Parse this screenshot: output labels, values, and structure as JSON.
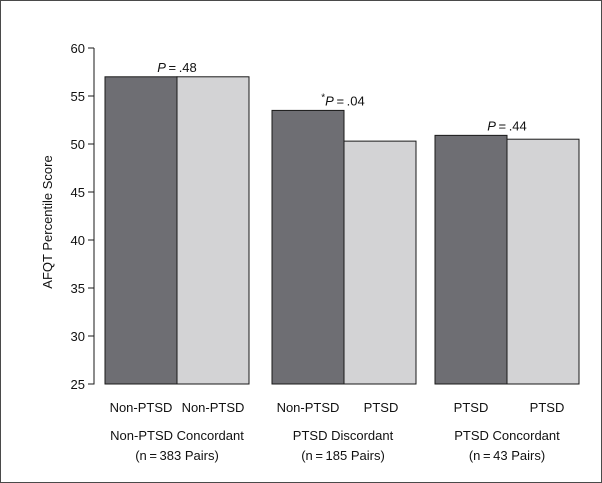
{
  "chart_data": {
    "type": "bar",
    "ylabel": "AFQT Percentile Score",
    "ylim": [
      25,
      60
    ],
    "yticks": [
      25,
      30,
      35,
      40,
      45,
      50,
      55,
      60
    ],
    "colors": {
      "dark": "#6e6e73",
      "light": "#d3d3d5",
      "edge": "#1a1a1a"
    },
    "groups": [
      {
        "label": "Non-PTSD Concordant",
        "sublabel": "(n = 383 Pairs)",
        "annotation_pre": "",
        "annotation_p": "P",
        "annotation_val": " = .48",
        "bars": [
          {
            "label": "Non-PTSD",
            "value": 57.0,
            "color": "dark"
          },
          {
            "label": "Non-PTSD",
            "value": 57.0,
            "color": "light"
          }
        ]
      },
      {
        "label": "PTSD Discordant",
        "sublabel": "(n = 185 Pairs)",
        "annotation_pre": "*",
        "annotation_p": "P",
        "annotation_val": " = .04",
        "bars": [
          {
            "label": "Non-PTSD",
            "value": 53.5,
            "color": "dark"
          },
          {
            "label": "PTSD",
            "value": 50.3,
            "color": "light"
          }
        ]
      },
      {
        "label": "PTSD Concordant",
        "sublabel": "(n = 43 Pairs)",
        "annotation_pre": "",
        "annotation_p": "P",
        "annotation_val": " = .44",
        "bars": [
          {
            "label": "PTSD",
            "value": 50.9,
            "color": "dark"
          },
          {
            "label": "PTSD",
            "value": 50.5,
            "color": "light"
          }
        ]
      }
    ]
  }
}
